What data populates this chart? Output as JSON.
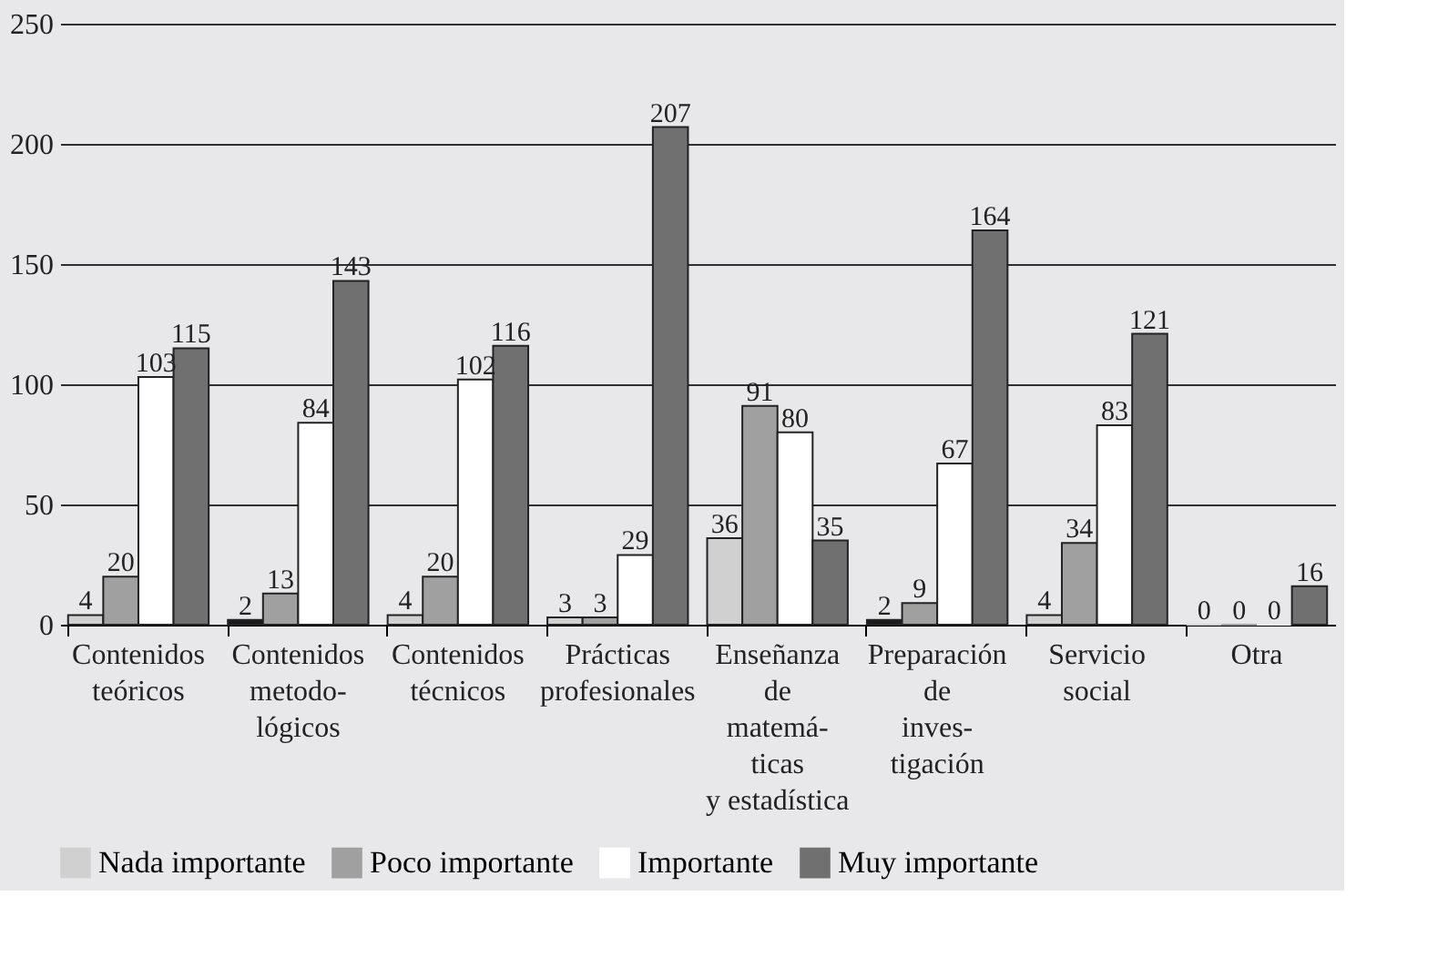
{
  "chart_data": {
    "type": "bar",
    "categories": [
      "Contenidos\nteóricos",
      "Contenidos\nmetodo-\nlógicos",
      "Contenidos\ntécnicos",
      "Prácticas\nprofesionales",
      "Enseñanza\nde\nmatemá-\nticas\ny estadística",
      "Preparación\nde\ninves-\ntigación",
      "Servicio\nsocial",
      "Otra"
    ],
    "series": [
      {
        "name": "Nada importante",
        "color": "#d0d0d0",
        "colors": [
          "#d0d0d0",
          "#1a1a1a",
          "#d0d0d0",
          "#d0d0d0",
          "#d0d0d0",
          "#1a1a1a",
          "#d0d0d0",
          "#d0d0d0"
        ],
        "values": [
          4,
          2,
          4,
          3,
          36,
          2,
          4,
          0
        ]
      },
      {
        "name": "Poco importante",
        "color": "#a0a0a0",
        "values": [
          20,
          13,
          20,
          3,
          91,
          9,
          34,
          0
        ]
      },
      {
        "name": "Importante",
        "color": "#ffffff",
        "values": [
          103,
          84,
          102,
          29,
          80,
          67,
          83,
          0
        ]
      },
      {
        "name": "Muy importante",
        "color": "#707070",
        "values": [
          115,
          143,
          116,
          207,
          35,
          164,
          121,
          16
        ]
      }
    ],
    "ylim": [
      0,
      250
    ],
    "yticks": [
      0,
      50,
      100,
      150,
      200,
      250
    ],
    "grid": "y",
    "legend": "bottom",
    "data_labels": true
  }
}
